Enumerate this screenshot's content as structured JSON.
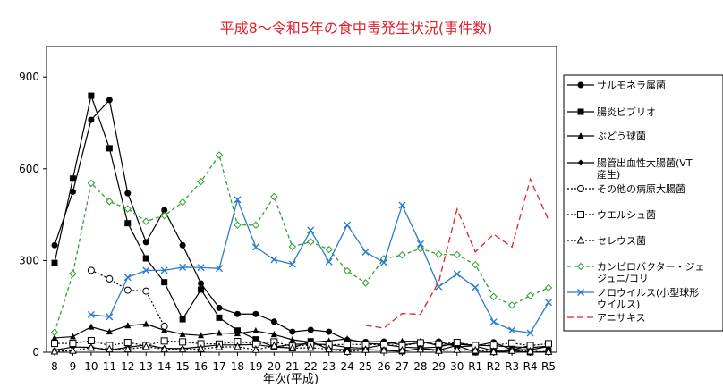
{
  "chart_data": {
    "type": "line",
    "title": "平成8～令和5年の食中毒発生状況(事件数)",
    "xlabel": "年次(平成)",
    "ylabel": "",
    "ylim": [
      0,
      1000
    ],
    "yticks": [
      0,
      300,
      600,
      900
    ],
    "grid": false,
    "legend_position": "right",
    "categories": [
      "8",
      "9",
      "10",
      "11",
      "12",
      "13",
      "14",
      "15",
      "16",
      "17",
      "18",
      "19",
      "20",
      "21",
      "22",
      "23",
      "24",
      "25",
      "26",
      "27",
      "28",
      "29",
      "30",
      "R1",
      "R2",
      "R3",
      "R4",
      "R5"
    ],
    "series": [
      {
        "name": "サルモネラ属菌",
        "color": "#000000",
        "dash": "solid",
        "marker": "circle-filled",
        "values": [
          350,
          525,
          760,
          825,
          520,
          360,
          465,
          350,
          225,
          145,
          125,
          125,
          100,
          67,
          73,
          67,
          40,
          34,
          35,
          24,
          31,
          35,
          18,
          21,
          33,
          8,
          22,
          null
        ]
      },
      {
        "name": "腸炎ビブリオ",
        "color": "#000000",
        "dash": "solid",
        "marker": "square-filled",
        "values": [
          292,
          568,
          839,
          667,
          422,
          307,
          229,
          108,
          205,
          113,
          71,
          42,
          17,
          14,
          36,
          9,
          9,
          9,
          6,
          3,
          12,
          7,
          22,
          0,
          1,
          5,
          0,
          2
        ]
      },
      {
        "name": "ぶどう球菌",
        "color": "#000000",
        "dash": "solid",
        "marker": "triangle-filled",
        "values": [
          47,
          51,
          83,
          67,
          87,
          92,
          72,
          59,
          55,
          63,
          61,
          70,
          58,
          41,
          33,
          37,
          44,
          29,
          26,
          36,
          36,
          22,
          26,
          23,
          21,
          18,
          15,
          20
        ]
      },
      {
        "name": "腸管出血性大腸菌(VT産生)",
        "color": "#000000",
        "dash": "solid",
        "marker": "diamond-filled",
        "values": [
          7,
          17,
          16,
          7,
          16,
          24,
          13,
          12,
          18,
          24,
          24,
          25,
          17,
          26,
          27,
          25,
          16,
          13,
          25,
          17,
          14,
          17,
          32,
          20,
          5,
          9,
          8,
          19
        ]
      },
      {
        "name": "その他の病原大腸菌",
        "color": "#000000",
        "dash": "dot",
        "marker": "circle-open",
        "values": [
          null,
          null,
          268,
          240,
          203,
          200,
          85,
          null,
          null,
          null,
          null,
          null,
          null,
          null,
          null,
          null,
          null,
          null,
          null,
          null,
          null,
          null,
          null,
          null,
          null,
          null,
          null,
          null
        ]
      },
      {
        "name": "ウエルシュ菌",
        "color": "#000000",
        "dash": "dot",
        "marker": "square-open",
        "values": [
          29,
          29,
          38,
          22,
          32,
          22,
          37,
          34,
          28,
          27,
          35,
          27,
          34,
          20,
          24,
          24,
          26,
          25,
          25,
          21,
          31,
          27,
          32,
          22,
          23,
          30,
          22,
          28
        ]
      },
      {
        "name": "セレウス菌",
        "color": "#000000",
        "dash": "dot",
        "marker": "triangle-open",
        "values": [
          3,
          5,
          15,
          10,
          10,
          18,
          10,
          10,
          11,
          17,
          18,
          8,
          21,
          13,
          15,
          10,
          2,
          8,
          6,
          6,
          9,
          5,
          8,
          6,
          1,
          5,
          3,
          2
        ]
      },
      {
        "name": "カンピロバクター・ジェジュニ/コリ",
        "color": "#2ca02c",
        "dash": "dash",
        "marker": "diamond-open",
        "values": [
          65,
          257,
          553,
          493,
          469,
          428,
          447,
          491,
          558,
          645,
          416,
          416,
          509,
          345,
          361,
          336,
          266,
          227,
          306,
          318,
          339,
          320,
          319,
          286,
          182,
          154,
          185,
          211
        ]
      },
      {
        "name": "ノロウイルス(小型球形ウイルス)",
        "color": "#2b7bd0",
        "dash": "solid",
        "marker": "x",
        "values": [
          null,
          null,
          123,
          116,
          245,
          268,
          268,
          278,
          277,
          274,
          499,
          344,
          303,
          288,
          399,
          296,
          416,
          328,
          293,
          481,
          354,
          214,
          256,
          212,
          99,
          72,
          63,
          163
        ]
      },
      {
        "name": "アニサキス",
        "color": "#e0202a",
        "dash": "longdash",
        "marker": "none",
        "values": [
          null,
          null,
          null,
          null,
          null,
          null,
          null,
          null,
          null,
          null,
          null,
          null,
          null,
          null,
          null,
          null,
          null,
          88,
          79,
          127,
          124,
          230,
          468,
          328,
          386,
          344,
          566,
          432
        ]
      }
    ]
  }
}
